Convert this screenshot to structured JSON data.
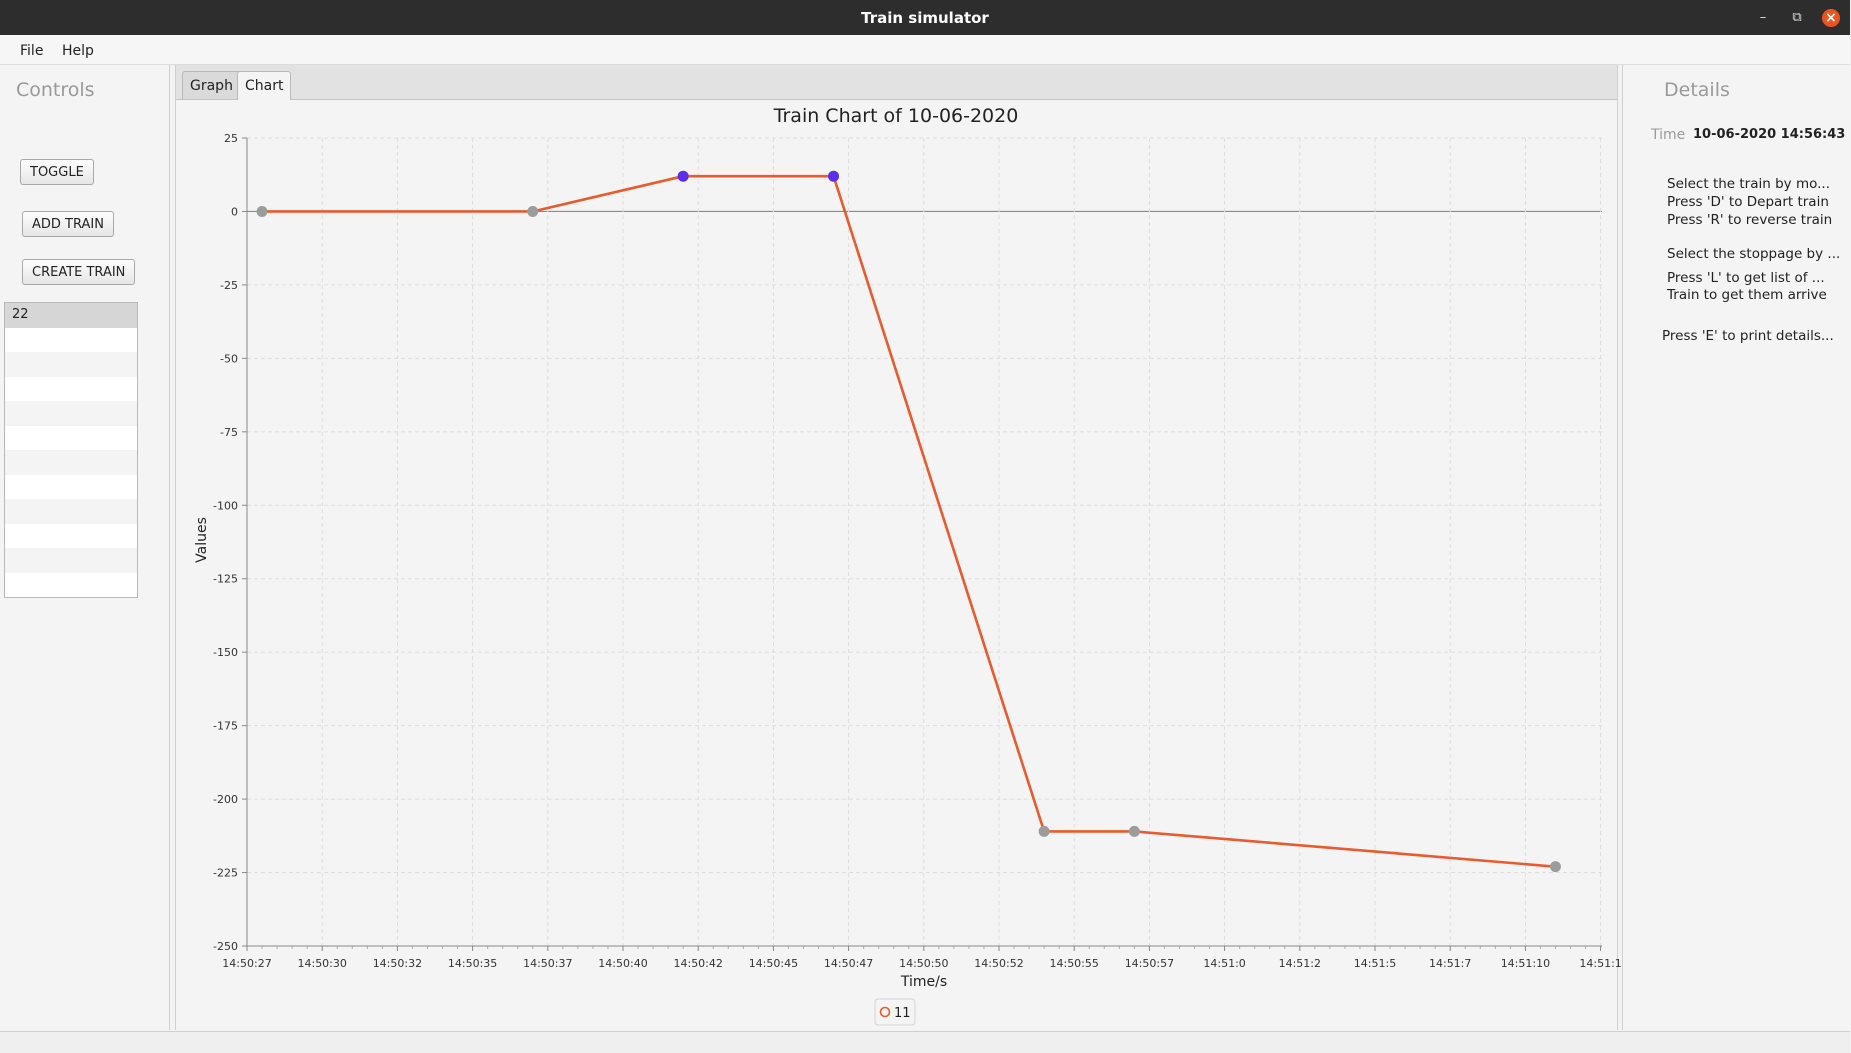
{
  "window": {
    "title": "Train simulator"
  },
  "menu": {
    "file": "File",
    "help": "Help"
  },
  "controls": {
    "title": "Controls",
    "toggle": "TOGGLE",
    "add_train": "ADD TRAIN",
    "create_train": "CREATE TRAIN",
    "train_list": [
      "22"
    ]
  },
  "tabs": {
    "graph": "Graph",
    "chart": "Chart",
    "active": "Chart"
  },
  "details": {
    "title": "Details",
    "time_label": "Time",
    "time_value": "10-06-2020 14:56:43",
    "help_lines": [
      "Select the train by mo...",
      "Press 'D' to Depart train",
      "Press 'R' to reverse train",
      "Select the stoppage by ...",
      "Press 'L' to get list of ...",
      "Train to get them arrive",
      "Press 'E' to print details..."
    ]
  },
  "colors": {
    "series": "#e95b2e",
    "highlight_point": "#5b2ef0",
    "point": "#9c9c9c",
    "close_button": "#e95420"
  },
  "chart_data": {
    "type": "line",
    "title": "Train Chart of 10-06-2020",
    "xlabel": "Time/s",
    "ylabel": "Values",
    "ylim": [
      -250,
      25
    ],
    "yticks": [
      "25",
      "0",
      "-25",
      "-50",
      "-75",
      "-100",
      "-125",
      "-150",
      "-175",
      "-200",
      "-225",
      "-250"
    ],
    "xticks": [
      "14:50:27",
      "14:50:30",
      "14:50:32",
      "14:50:35",
      "14:50:37",
      "14:50:40",
      "14:50:42",
      "14:50:45",
      "14:50:47",
      "14:50:50",
      "14:50:52",
      "14:50:55",
      "14:50:57",
      "14:51:0",
      "14:51:2",
      "14:51:5",
      "14:51:7",
      "14:51:10",
      "14:51:1"
    ],
    "grid": true,
    "legend_position": "bottom",
    "series": [
      {
        "name": "11",
        "x": [
          "14:50:27.5",
          "14:50:36.5",
          "14:50:41.5",
          "14:50:46.5",
          "14:50:53.5",
          "14:50:56.5",
          "14:51:10.5"
        ],
        "values": [
          0,
          0,
          12,
          12,
          -211,
          -211,
          -223
        ],
        "highlighted_points": [
          2,
          3
        ]
      }
    ]
  }
}
